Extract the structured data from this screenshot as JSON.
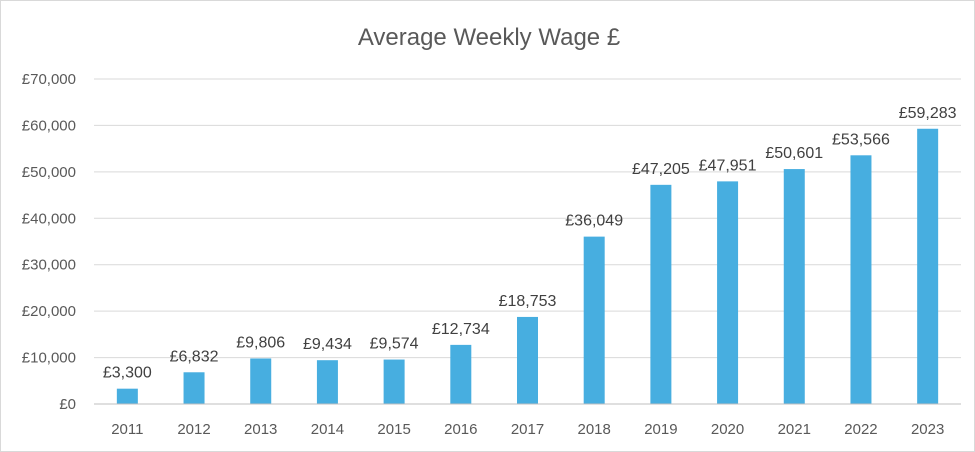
{
  "chart_data": {
    "type": "bar",
    "title": "Average Weekly Wage £",
    "xlabel": "",
    "ylabel": "",
    "categories": [
      "2011",
      "2012",
      "2013",
      "2014",
      "2015",
      "2016",
      "2017",
      "2018",
      "2019",
      "2020",
      "2021",
      "2022",
      "2023"
    ],
    "values": [
      3300,
      6832,
      9806,
      9434,
      9574,
      12734,
      18753,
      36049,
      47205,
      47951,
      50601,
      53566,
      59283
    ],
    "data_labels": [
      "£3,300",
      "£6,832",
      "£9,806",
      "£9,434",
      "£9,574",
      "£12,734",
      "£18,753",
      "£36,049",
      "£47,205",
      "£47,951",
      "£50,601",
      "£53,566",
      "£59,283"
    ],
    "ylim": [
      0,
      70000
    ],
    "yticks": [
      0,
      10000,
      20000,
      30000,
      40000,
      50000,
      60000,
      70000
    ],
    "ytick_labels": [
      "£0",
      "£10,000",
      "£20,000",
      "£30,000",
      "£40,000",
      "£50,000",
      "£60,000",
      "£70,000"
    ],
    "bar_color": "#47aee0",
    "grid": true,
    "legend": "none"
  }
}
